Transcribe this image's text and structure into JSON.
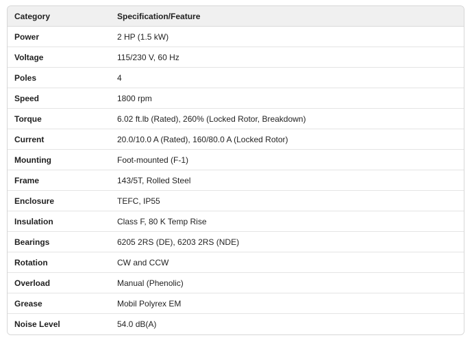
{
  "table": {
    "columns": {
      "category": "Category",
      "specification": "Specification/Feature"
    },
    "rows": [
      {
        "category": "Power",
        "value": "2 HP (1.5 kW)"
      },
      {
        "category": "Voltage",
        "value": "115/230 V, 60 Hz"
      },
      {
        "category": "Poles",
        "value": "4"
      },
      {
        "category": "Speed",
        "value": "1800 rpm"
      },
      {
        "category": "Torque",
        "value": "6.02 ft.lb (Rated), 260% (Locked Rotor, Breakdown)"
      },
      {
        "category": "Current",
        "value": "20.0/10.0 A (Rated), 160/80.0 A (Locked Rotor)"
      },
      {
        "category": "Mounting",
        "value": "Foot-mounted (F-1)"
      },
      {
        "category": "Frame",
        "value": "143/5T, Rolled Steel"
      },
      {
        "category": "Enclosure",
        "value": "TEFC, IP55"
      },
      {
        "category": "Insulation",
        "value": "Class F, 80 K Temp Rise"
      },
      {
        "category": "Bearings",
        "value": "6205 2RS (DE), 6203 2RS (NDE)"
      },
      {
        "category": "Rotation",
        "value": "CW and CCW"
      },
      {
        "category": "Overload",
        "value": "Manual (Phenolic)"
      },
      {
        "category": "Grease",
        "value": "Mobil Polyrex EM"
      },
      {
        "category": "Noise Level",
        "value": "54.0 dB(A)"
      }
    ],
    "colors": {
      "header_background": "#f0f0f0",
      "outer_border": "#d6d6d6",
      "row_divider": "#e4e4e4",
      "text": "#1f1f1f"
    }
  }
}
